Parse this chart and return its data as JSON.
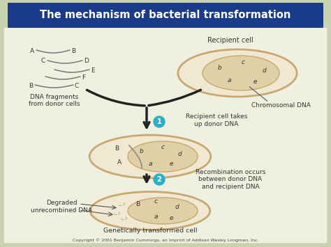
{
  "title": "The mechanism of bacterial transformation",
  "title_bg": "#1a3a8a",
  "title_color": "#ffffff",
  "bg_color": "#c8d4b0",
  "panel_bg": "#f0f0e0",
  "cell_fill": "#f0e8d0",
  "cell_border": "#c8a870",
  "inner_fill": "#e0d0a8",
  "step_circle_color": "#29b0cc",
  "step_text_color": "#ffffff",
  "copyright": "Copyright © 2001 Benjamin Cummings, an imprint of Addison Wesley Longman, Inc.",
  "labels": {
    "dna_fragments": "DNA fragments\nfrom donor cells",
    "recipient_cell": "Recipient cell",
    "chromosomal_dna": "Chromosomal DNA",
    "step1": "Recipient cell takes\nup donor DNA",
    "step2": "Recombination occurs\nbetween donor DNA\nand recipient DNA",
    "degraded": "Degraded\nunrecombined DNA",
    "transformed": "Genetically transformed cell"
  }
}
